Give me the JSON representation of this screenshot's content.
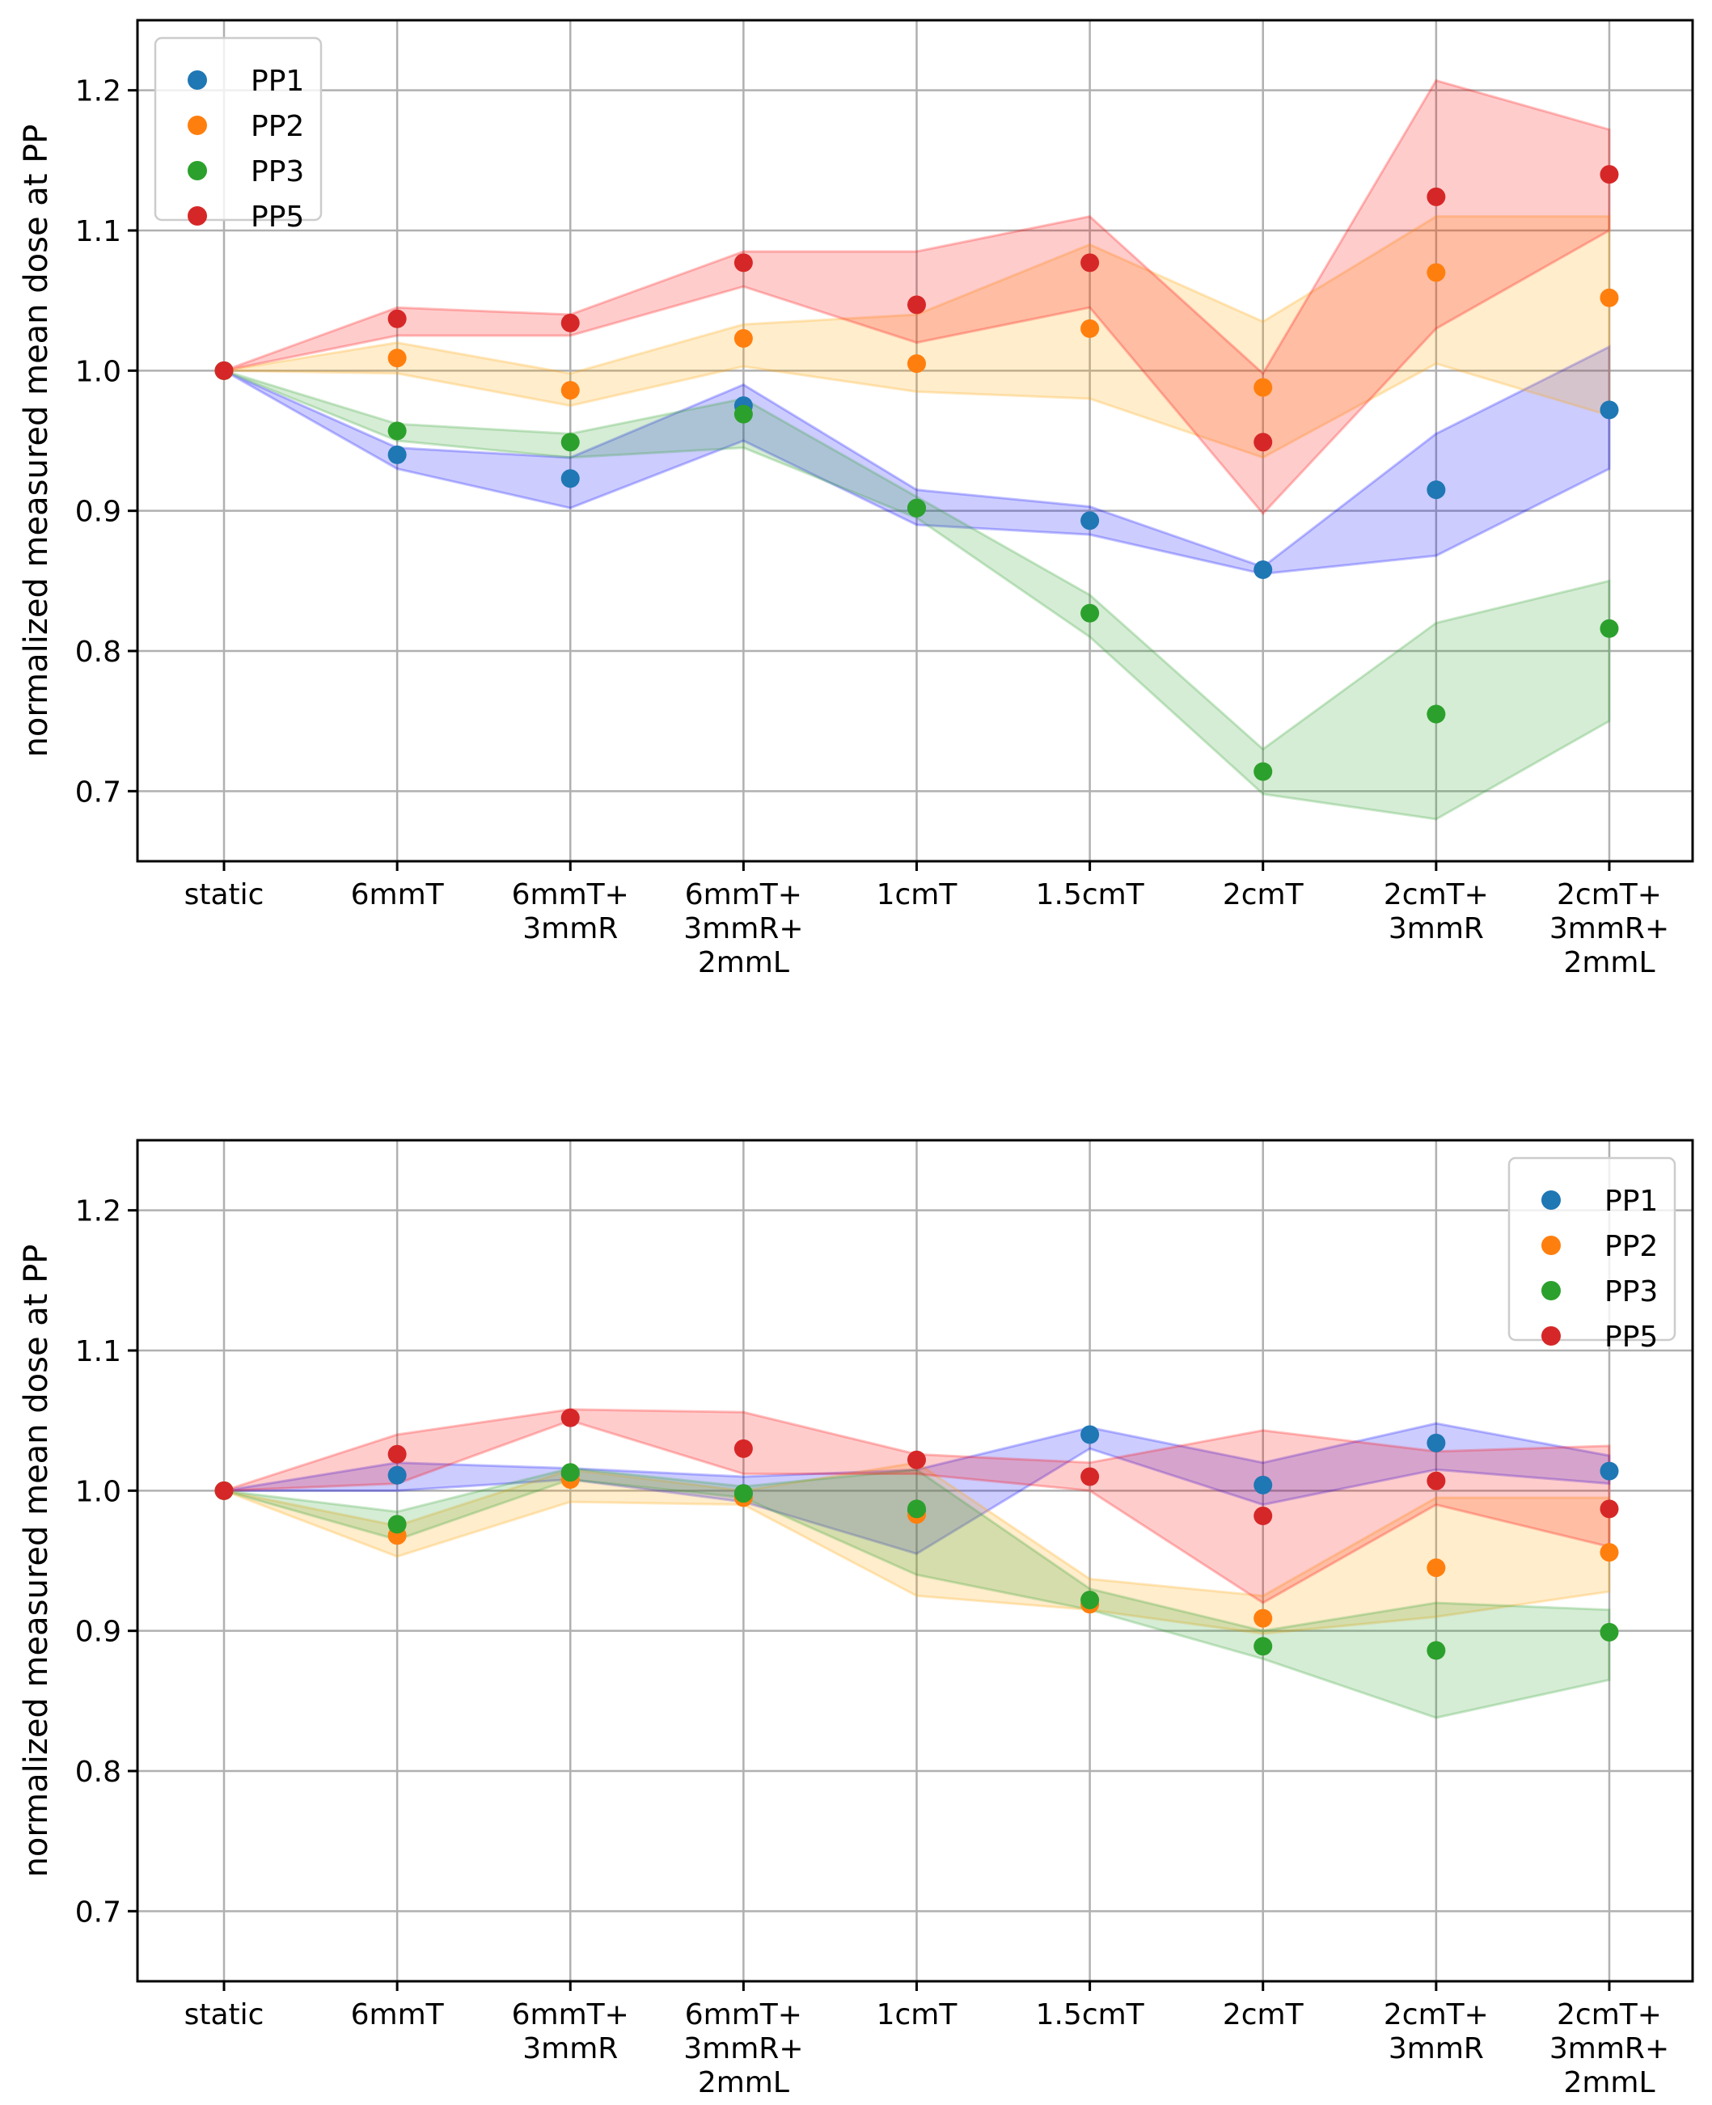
{
  "chart_data": [
    {
      "type": "scatter",
      "title": "",
      "xlabel": "",
      "ylabel": "normalized measured mean dose at PP",
      "ylim": [
        0.65,
        1.25
      ],
      "yticks": [
        "0.7",
        "0.8",
        "0.9",
        "1.0",
        "1.1",
        "1.2"
      ],
      "ytick_values": [
        0.7,
        0.8,
        0.9,
        1.0,
        1.1,
        1.2
      ],
      "grid": true,
      "legend_position": "top-left",
      "categories": [
        [
          "static"
        ],
        [
          "6mmT"
        ],
        [
          "6mmT+",
          "3mmR"
        ],
        [
          "6mmT+",
          "3mmR+",
          "2mmL"
        ],
        [
          "1cmT"
        ],
        [
          "1.5cmT"
        ],
        [
          "2cmT"
        ],
        [
          "2cmT+",
          "3mmR"
        ],
        [
          "2cmT+",
          "3mmR+",
          "2mmL"
        ]
      ],
      "series": [
        {
          "name": "PP1",
          "color": "#1f77b4",
          "band_color": "#0000ff",
          "values": [
            1.0,
            0.94,
            0.923,
            0.975,
            0.902,
            0.893,
            0.858,
            0.915,
            0.972
          ],
          "lower": [
            1.0,
            0.93,
            0.902,
            0.95,
            0.89,
            0.883,
            0.855,
            0.868,
            0.93
          ],
          "upper": [
            1.0,
            0.945,
            0.938,
            0.99,
            0.915,
            0.903,
            0.86,
            0.955,
            1.017
          ]
        },
        {
          "name": "PP2",
          "color": "#ff7f0e",
          "band_color": "#ffa500",
          "values": [
            1.0,
            1.009,
            0.986,
            1.023,
            1.005,
            1.03,
            0.988,
            1.07,
            1.052
          ],
          "lower": [
            1.0,
            0.998,
            0.975,
            1.003,
            0.985,
            0.98,
            0.938,
            1.005,
            0.968
          ],
          "upper": [
            1.0,
            1.02,
            0.998,
            1.033,
            1.04,
            1.09,
            1.035,
            1.11,
            1.11
          ]
        },
        {
          "name": "PP3",
          "color": "#2ca02c",
          "band_color": "#2ca02c",
          "values": [
            1.0,
            0.957,
            0.949,
            0.969,
            0.902,
            0.827,
            0.714,
            0.755,
            0.816
          ],
          "lower": [
            1.0,
            0.95,
            0.938,
            0.945,
            0.895,
            0.81,
            0.698,
            0.68,
            0.75
          ],
          "upper": [
            1.0,
            0.962,
            0.955,
            0.98,
            0.91,
            0.84,
            0.73,
            0.82,
            0.85
          ]
        },
        {
          "name": "PP5",
          "color": "#d62728",
          "band_color": "#ff0000",
          "values": [
            1.0,
            1.037,
            1.034,
            1.077,
            1.047,
            1.077,
            0.949,
            1.124,
            1.14
          ],
          "lower": [
            1.0,
            1.025,
            1.025,
            1.06,
            1.02,
            1.045,
            0.898,
            1.03,
            1.1
          ],
          "upper": [
            1.0,
            1.045,
            1.04,
            1.085,
            1.085,
            1.11,
            0.998,
            1.207,
            1.172
          ]
        }
      ]
    },
    {
      "type": "scatter",
      "title": "",
      "xlabel": "",
      "ylabel": "normalized measured mean dose at PP",
      "ylim": [
        0.65,
        1.25
      ],
      "yticks": [
        "0.7",
        "0.8",
        "0.9",
        "1.0",
        "1.1",
        "1.2"
      ],
      "ytick_values": [
        0.7,
        0.8,
        0.9,
        1.0,
        1.1,
        1.2
      ],
      "grid": true,
      "legend_position": "top-right",
      "categories": [
        [
          "static"
        ],
        [
          "6mmT"
        ],
        [
          "6mmT+",
          "3mmR"
        ],
        [
          "6mmT+",
          "3mmR+",
          "2mmL"
        ],
        [
          "1cmT"
        ],
        [
          "1.5cmT"
        ],
        [
          "2cmT"
        ],
        [
          "2cmT+",
          "3mmR"
        ],
        [
          "2cmT+",
          "3mmR+",
          "2mmL"
        ]
      ],
      "series": [
        {
          "name": "PP1",
          "color": "#1f77b4",
          "band_color": "#0000ff",
          "values": [
            1.0,
            1.011,
            1.012,
            0.998,
            0.986,
            1.04,
            1.004,
            1.034,
            1.014
          ],
          "lower": [
            1.0,
            1.0,
            1.008,
            0.992,
            0.955,
            1.03,
            0.99,
            1.015,
            1.005
          ],
          "upper": [
            1.0,
            1.02,
            1.016,
            1.01,
            1.015,
            1.045,
            1.02,
            1.048,
            1.025
          ]
        },
        {
          "name": "PP2",
          "color": "#ff7f0e",
          "band_color": "#ffa500",
          "values": [
            1.0,
            0.968,
            1.008,
            0.995,
            0.983,
            0.919,
            0.909,
            0.945,
            0.956
          ],
          "lower": [
            1.0,
            0.953,
            0.992,
            0.99,
            0.925,
            0.915,
            0.898,
            0.91,
            0.928
          ],
          "upper": [
            1.0,
            0.975,
            1.015,
            1.0,
            1.02,
            0.937,
            0.925,
            0.995,
            0.995
          ]
        },
        {
          "name": "PP3",
          "color": "#2ca02c",
          "band_color": "#2ca02c",
          "values": [
            1.0,
            0.976,
            1.013,
            0.998,
            0.987,
            0.922,
            0.889,
            0.886,
            0.899
          ],
          "lower": [
            1.0,
            0.965,
            1.008,
            0.995,
            0.94,
            0.915,
            0.88,
            0.838,
            0.865
          ],
          "upper": [
            1.0,
            0.985,
            1.016,
            1.003,
            1.015,
            0.93,
            0.9,
            0.92,
            0.915
          ]
        },
        {
          "name": "PP5",
          "color": "#d62728",
          "band_color": "#ff0000",
          "values": [
            1.0,
            1.026,
            1.052,
            1.03,
            1.022,
            1.01,
            0.982,
            1.007,
            0.987
          ],
          "lower": [
            1.0,
            1.005,
            1.05,
            1.012,
            1.012,
            1.0,
            0.92,
            0.99,
            0.96
          ],
          "upper": [
            1.0,
            1.04,
            1.058,
            1.056,
            1.026,
            1.02,
            1.043,
            1.028,
            1.032
          ]
        }
      ]
    }
  ]
}
